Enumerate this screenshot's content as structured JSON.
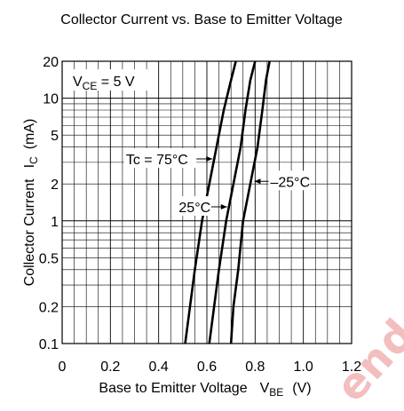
{
  "chart_data": {
    "type": "line",
    "title": "Collector Current vs. Base to Emitter Voltage",
    "xlabel_main": "Base to Emitter Voltage",
    "xlabel_symbol": "V",
    "xlabel_sub": "BE",
    "xlabel_unit": "(V)",
    "ylabel_main": "Collector Current",
    "ylabel_symbol": "I",
    "ylabel_sub": "C",
    "ylabel_unit": "(mA)",
    "condition": {
      "prefix": "V",
      "sub": "CE",
      "suffix": " = 5 V"
    },
    "x_scale": "linear",
    "y_scale": "log",
    "xlim": [
      0,
      1.2
    ],
    "ylim": [
      0.1,
      20
    ],
    "x_ticks": [
      0,
      0.2,
      0.4,
      0.6,
      0.8,
      1.0,
      1.2
    ],
    "x_tick_labels": [
      "0",
      "0.2",
      "0.4",
      "0.6",
      "0.8",
      "1.0",
      "1.2"
    ],
    "y_ticks": [
      0.1,
      0.2,
      0.5,
      1,
      2,
      5,
      10,
      20
    ],
    "y_tick_labels": [
      "0.1",
      "0.2",
      "0.5",
      "1",
      "2",
      "5",
      "10",
      "20"
    ],
    "grid": true,
    "series": [
      {
        "name": "Tc = 75°C",
        "x": [
          0.51,
          0.53,
          0.55,
          0.58,
          0.61,
          0.64,
          0.67,
          0.7,
          0.72
        ],
        "y": [
          0.1,
          0.2,
          0.4,
          1,
          2,
          4,
          8,
          14,
          20
        ]
      },
      {
        "name": "25°C",
        "x": [
          0.61,
          0.63,
          0.65,
          0.68,
          0.71,
          0.74,
          0.76,
          0.78,
          0.8
        ],
        "y": [
          0.1,
          0.2,
          0.4,
          1,
          2,
          4,
          8,
          14,
          20
        ]
      },
      {
        "name": "–25°C",
        "x": [
          0.7,
          0.71,
          0.73,
          0.75,
          0.78,
          0.81,
          0.83,
          0.845,
          0.86
        ],
        "y": [
          0.1,
          0.2,
          0.4,
          1,
          2,
          4,
          8,
          14,
          20
        ]
      }
    ],
    "annotations": [
      {
        "text": "Tc = 75°C",
        "series": 0,
        "at_y": 3.2
      },
      {
        "text": "25°C",
        "series": 1,
        "at_y": 1.3
      },
      {
        "text": "–25°C",
        "series": 2,
        "at_y": 2.1
      }
    ]
  }
}
